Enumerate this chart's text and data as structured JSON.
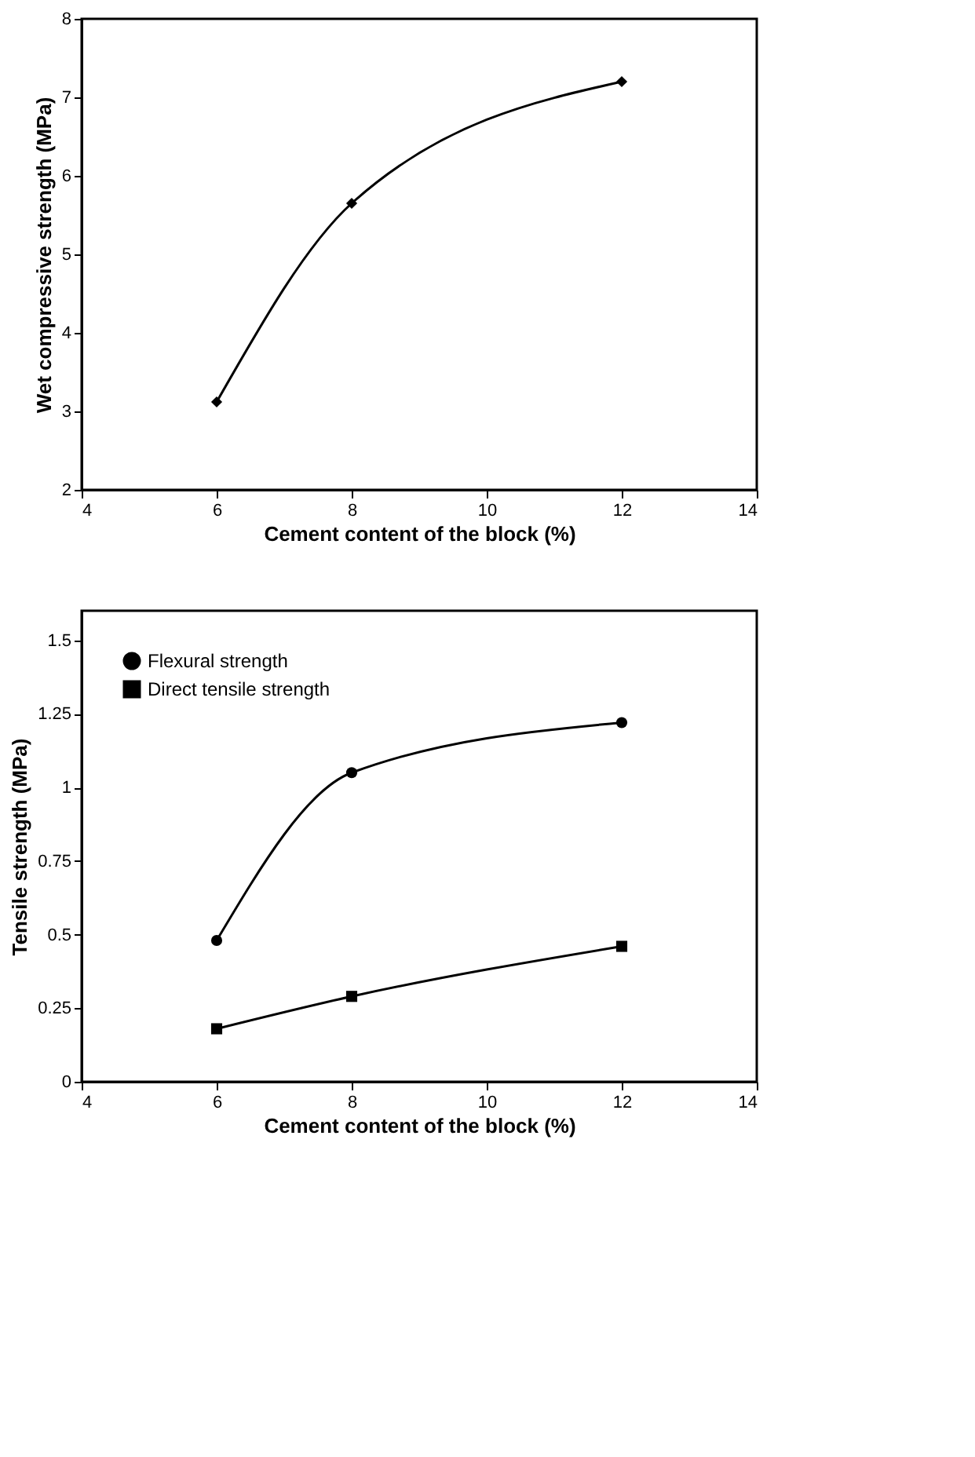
{
  "chart_data": [
    {
      "type": "line",
      "xlabel": "Cement content of the block (%)",
      "ylabel": "Wet compressive strength (MPa)",
      "x": [
        6,
        8,
        12
      ],
      "xlim": [
        4,
        14
      ],
      "xticks": [
        4,
        6,
        8,
        10,
        12,
        14
      ],
      "ylim": [
        2,
        8
      ],
      "yticks": [
        2,
        3,
        4,
        5,
        6,
        7,
        8
      ],
      "grid": false,
      "legend": false,
      "line_style": "solid",
      "series": [
        {
          "color": "#000000",
          "values": [
            3.12,
            5.65,
            7.2
          ],
          "marker": "diamond"
        }
      ]
    },
    {
      "type": "line",
      "xlabel": "Cement content of the block (%)",
      "ylabel": "Tensile strength (MPa)",
      "x": [
        6,
        8,
        12
      ],
      "xlim": [
        4,
        14
      ],
      "xticks": [
        4,
        6,
        8,
        10,
        12,
        14
      ],
      "ylim": [
        0,
        1.6
      ],
      "yticks": [
        0,
        0.25,
        0.5,
        0.75,
        1,
        1.25,
        1.5
      ],
      "grid": false,
      "legend": "top left",
      "line_style": "solid",
      "series": [
        {
          "name": "Flexural strength",
          "color": "#000000",
          "values": [
            0.48,
            1.05,
            1.22
          ],
          "marker": "circle"
        },
        {
          "name": "Direct tensile strength",
          "color": "#000000",
          "values": [
            0.18,
            0.29,
            0.46
          ],
          "marker": "square"
        }
      ]
    }
  ]
}
